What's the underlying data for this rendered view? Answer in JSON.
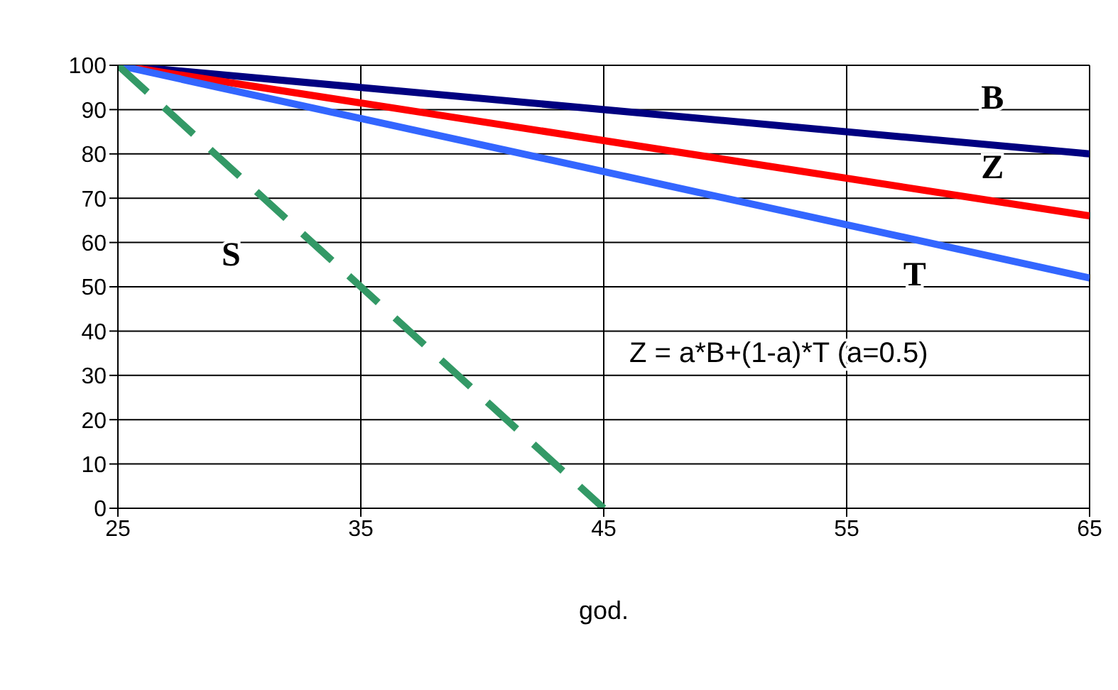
{
  "chart_data": {
    "type": "line",
    "xlabel": "god.",
    "x": [
      25,
      65
    ],
    "series": [
      {
        "name": "B",
        "color": "#000080",
        "values": [
          100,
          80
        ],
        "line_style": "solid"
      },
      {
        "name": "Z",
        "color": "#ff0000",
        "values": [
          100,
          66
        ],
        "line_style": "solid"
      },
      {
        "name": "T",
        "color": "#3366ff",
        "values": [
          100,
          52
        ],
        "line_style": "solid"
      },
      {
        "name": "S",
        "color": "#339966",
        "x": [
          25,
          45
        ],
        "values": [
          100,
          0
        ],
        "line_style": "dashed"
      }
    ],
    "annotations": [
      "Z = a*B+(1-a)*T  (a=0.5)"
    ],
    "xlim": [
      25,
      65
    ],
    "xticks": [
      25,
      35,
      45,
      55,
      65
    ],
    "ylim": [
      0,
      100
    ],
    "yticks": [
      0,
      10,
      20,
      30,
      40,
      50,
      60,
      70,
      80,
      90,
      100
    ],
    "grid": true,
    "legend": false,
    "marker": "none"
  }
}
